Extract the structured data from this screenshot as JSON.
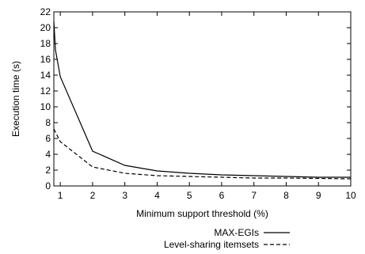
{
  "chart_data": {
    "type": "line",
    "title": "",
    "xlabel": "Minimum support threshold (%)",
    "ylabel": "Execution time (s)",
    "xlim": [
      0.8,
      10
    ],
    "ylim": [
      0,
      22
    ],
    "x_ticks": [
      1,
      2,
      3,
      4,
      5,
      6,
      7,
      8,
      9,
      10
    ],
    "y_ticks": [
      0,
      2,
      4,
      6,
      8,
      10,
      12,
      14,
      16,
      18,
      20,
      22
    ],
    "grid": false,
    "legend_position": "bottom",
    "series": [
      {
        "name": "MAX-EGIs",
        "line_style": "solid",
        "color": "#000000",
        "x": [
          0.8,
          0.85,
          1,
          2,
          3,
          4,
          5,
          6,
          7,
          8,
          9,
          10
        ],
        "y": [
          20.8,
          17.2,
          13.8,
          4.4,
          2.6,
          1.9,
          1.6,
          1.4,
          1.3,
          1.2,
          1.1,
          1.1
        ]
      },
      {
        "name": "Level-sharing itemsets",
        "line_style": "dashed",
        "color": "#000000",
        "x": [
          0.8,
          1,
          2,
          3,
          4,
          5,
          6,
          7,
          8,
          9,
          10
        ],
        "y": [
          7.2,
          5.6,
          2.4,
          1.6,
          1.3,
          1.2,
          1.1,
          1.0,
          1.0,
          0.95,
          0.9
        ]
      }
    ]
  }
}
